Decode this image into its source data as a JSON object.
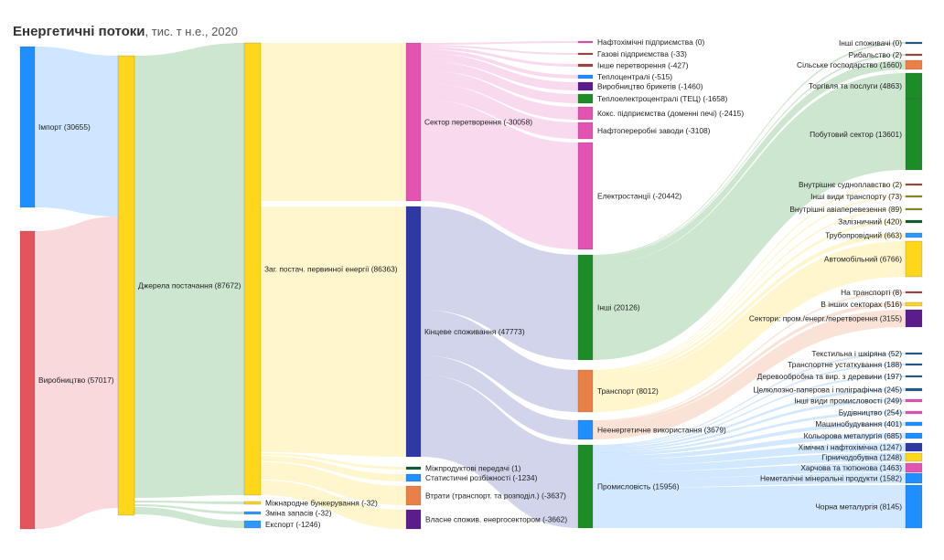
{
  "chart_data": {
    "type": "sankey",
    "title": "Енергетичні потоки",
    "subtitle": ", тис. т н.е., 2020",
    "colors": {
      "blue": "#1f8fff",
      "red": "#e3545b",
      "yellow": "#ffd71a",
      "pink": "#e353b1",
      "navy": "#2e39a6",
      "green": "#1d8c26",
      "orange": "#e98046",
      "purple": "#5c1c8c",
      "brown": "#a3443b",
      "darkgreen": "#0d5c34",
      "steel": "#1f5a8f",
      "olive": "#8a9115",
      "lightblue": "#2f98ff"
    },
    "nodes": [
      {
        "id": "import",
        "label": "Імпорт (30655)",
        "value": 30655,
        "color": "blue"
      },
      {
        "id": "production",
        "label": "Виробництво (57017)",
        "value": 57017,
        "color": "red"
      },
      {
        "id": "supply",
        "label": "Джерела постачання (87672)",
        "value": 87672,
        "color": "yellow"
      },
      {
        "id": "tpes",
        "label": "Заг. постач. первинної енергії (86363)",
        "value": 86363,
        "color": "yellow"
      },
      {
        "id": "bunkers",
        "label": "Міжнародне бункерування (-32)",
        "value": -32,
        "color": "yellow"
      },
      {
        "id": "stockchange",
        "label": "Зміна запасів (-32)",
        "value": -32,
        "color": "lightblue"
      },
      {
        "id": "export",
        "label": "Експорт (-1246)",
        "value": -1246,
        "color": "lightblue"
      },
      {
        "id": "transform",
        "label": "Сектор перетворення (-30058)",
        "value": -30058,
        "color": "pink"
      },
      {
        "id": "final",
        "label": "Кінцеве споживання (47773)",
        "value": 47773,
        "color": "navy"
      },
      {
        "id": "interprod",
        "label": "Міжпродуктові передачі (1)",
        "value": 1,
        "color": "darkgreen"
      },
      {
        "id": "statdiff",
        "label": "Статистичні розбіжності (-1234)",
        "value": -1234,
        "color": "blue"
      },
      {
        "id": "losses",
        "label": "Втрати (транспорт. та розподіл.) (-3637)",
        "value": -3637,
        "color": "orange"
      },
      {
        "id": "ownuse",
        "label": "Власне спожив. енергосектором (-3662)",
        "value": -3662,
        "color": "purple"
      },
      {
        "id": "petrochem",
        "label": "Нафтохімічні підприємства (0)",
        "value": 0,
        "color": "pink"
      },
      {
        "id": "gasworks",
        "label": "Газові підприємства (-33)",
        "value": -33,
        "color": "brown"
      },
      {
        "id": "othertrans",
        "label": "Інше перетворення (-427)",
        "value": -427,
        "color": "brown"
      },
      {
        "id": "heatplants",
        "label": "Теплоцентралі (-515)",
        "value": -515,
        "color": "blue"
      },
      {
        "id": "briquettes",
        "label": "Виробництво брикетів (-1460)",
        "value": -1460,
        "color": "purple"
      },
      {
        "id": "chp",
        "label": "Теплоелектроцентралі (ТЕЦ) (-1658)",
        "value": -1658,
        "color": "green"
      },
      {
        "id": "coke",
        "label": "Кокс. підприємства (доменні печі) (-2415)",
        "value": -2415,
        "color": "pink"
      },
      {
        "id": "refineries",
        "label": "Нафтопереробні заводи (-3108)",
        "value": -3108,
        "color": "pink"
      },
      {
        "id": "powerplants",
        "label": "Електростанції (-20442)",
        "value": -20442,
        "color": "pink"
      },
      {
        "id": "other",
        "label": "Інші (20126)",
        "value": 20126,
        "color": "green"
      },
      {
        "id": "transport",
        "label": "Транспорт (8012)",
        "value": 8012,
        "color": "orange"
      },
      {
        "id": "nonenergy",
        "label": "Неенергетичне використання (3679)",
        "value": 3679,
        "color": "blue"
      },
      {
        "id": "industry",
        "label": "Промисловість (15956)",
        "value": 15956,
        "color": "green"
      },
      {
        "id": "otherconsumers",
        "label": "Інші споживачі (0)",
        "value": 0,
        "color": "steel"
      },
      {
        "id": "fishing",
        "label": "Рибальство (2)",
        "value": 2,
        "color": "brown"
      },
      {
        "id": "agriculture",
        "label": "Сільське господарство (1660)",
        "value": 1660,
        "color": "orange"
      },
      {
        "id": "commerce",
        "label": "Торгівля та послуги (4863)",
        "value": 4863,
        "color": "green"
      },
      {
        "id": "residential",
        "label": "Побутовий сектор (13601)",
        "value": 13601,
        "color": "green"
      },
      {
        "id": "domnav",
        "label": "Внутрішнє судноплавство (2)",
        "value": 2,
        "color": "brown"
      },
      {
        "id": "othertransport",
        "label": "Інші види транспорту (73)",
        "value": 73,
        "color": "olive"
      },
      {
        "id": "domaviation",
        "label": "Внутрішні авіаперевезення (89)",
        "value": 89,
        "color": "olive"
      },
      {
        "id": "rail",
        "label": "Залізничний (420)",
        "value": 420,
        "color": "darkgreen"
      },
      {
        "id": "pipeline",
        "label": "Трубопровідний (663)",
        "value": 663,
        "color": "lightblue"
      },
      {
        "id": "road",
        "label": "Автомобільний (6766)",
        "value": 6766,
        "color": "yellow"
      },
      {
        "id": "ne_transport",
        "label": "На транспорті (8)",
        "value": 8,
        "color": "brown"
      },
      {
        "id": "ne_other",
        "label": "В інших секторах (516)",
        "value": 516,
        "color": "yellow"
      },
      {
        "id": "ne_industry",
        "label": "Сектори: пром./енерг./перетворення (3155)",
        "value": 3155,
        "color": "purple"
      },
      {
        "id": "textile",
        "label": "Текстильна і шкіряна (52)",
        "value": 52,
        "color": "steel"
      },
      {
        "id": "transpequip",
        "label": "Транспортне устаткування (188)",
        "value": 188,
        "color": "steel"
      },
      {
        "id": "wood",
        "label": "Деревообробна та вир. з деревини (197)",
        "value": 197,
        "color": "steel"
      },
      {
        "id": "paper",
        "label": "Целюлозно-паперова і поліграфічна (245)",
        "value": 245,
        "color": "steel"
      },
      {
        "id": "otherindustry",
        "label": "Інші види промисловості (249)",
        "value": 249,
        "color": "pink"
      },
      {
        "id": "construction",
        "label": "Будівництво (254)",
        "value": 254,
        "color": "pink"
      },
      {
        "id": "machinery",
        "label": "Машинобудування (401)",
        "value": 401,
        "color": "blue"
      },
      {
        "id": "nonferrous",
        "label": "Кольорова металургія (685)",
        "value": 685,
        "color": "blue"
      },
      {
        "id": "chemical",
        "label": "Хімічна і нафтохімічна (1247)",
        "value": 1247,
        "color": "navy"
      },
      {
        "id": "mining",
        "label": "Гірничодобувна (1248)",
        "value": 1248,
        "color": "yellow"
      },
      {
        "id": "food",
        "label": "Харчова та тютюнова (1463)",
        "value": 1463,
        "color": "pink"
      },
      {
        "id": "nonmetallic",
        "label": "Неметалічні мінеральні продукти (1582)",
        "value": 1582,
        "color": "blue"
      },
      {
        "id": "iron",
        "label": "Чорна металургія (8145)",
        "value": 8145,
        "color": "blue"
      }
    ]
  }
}
